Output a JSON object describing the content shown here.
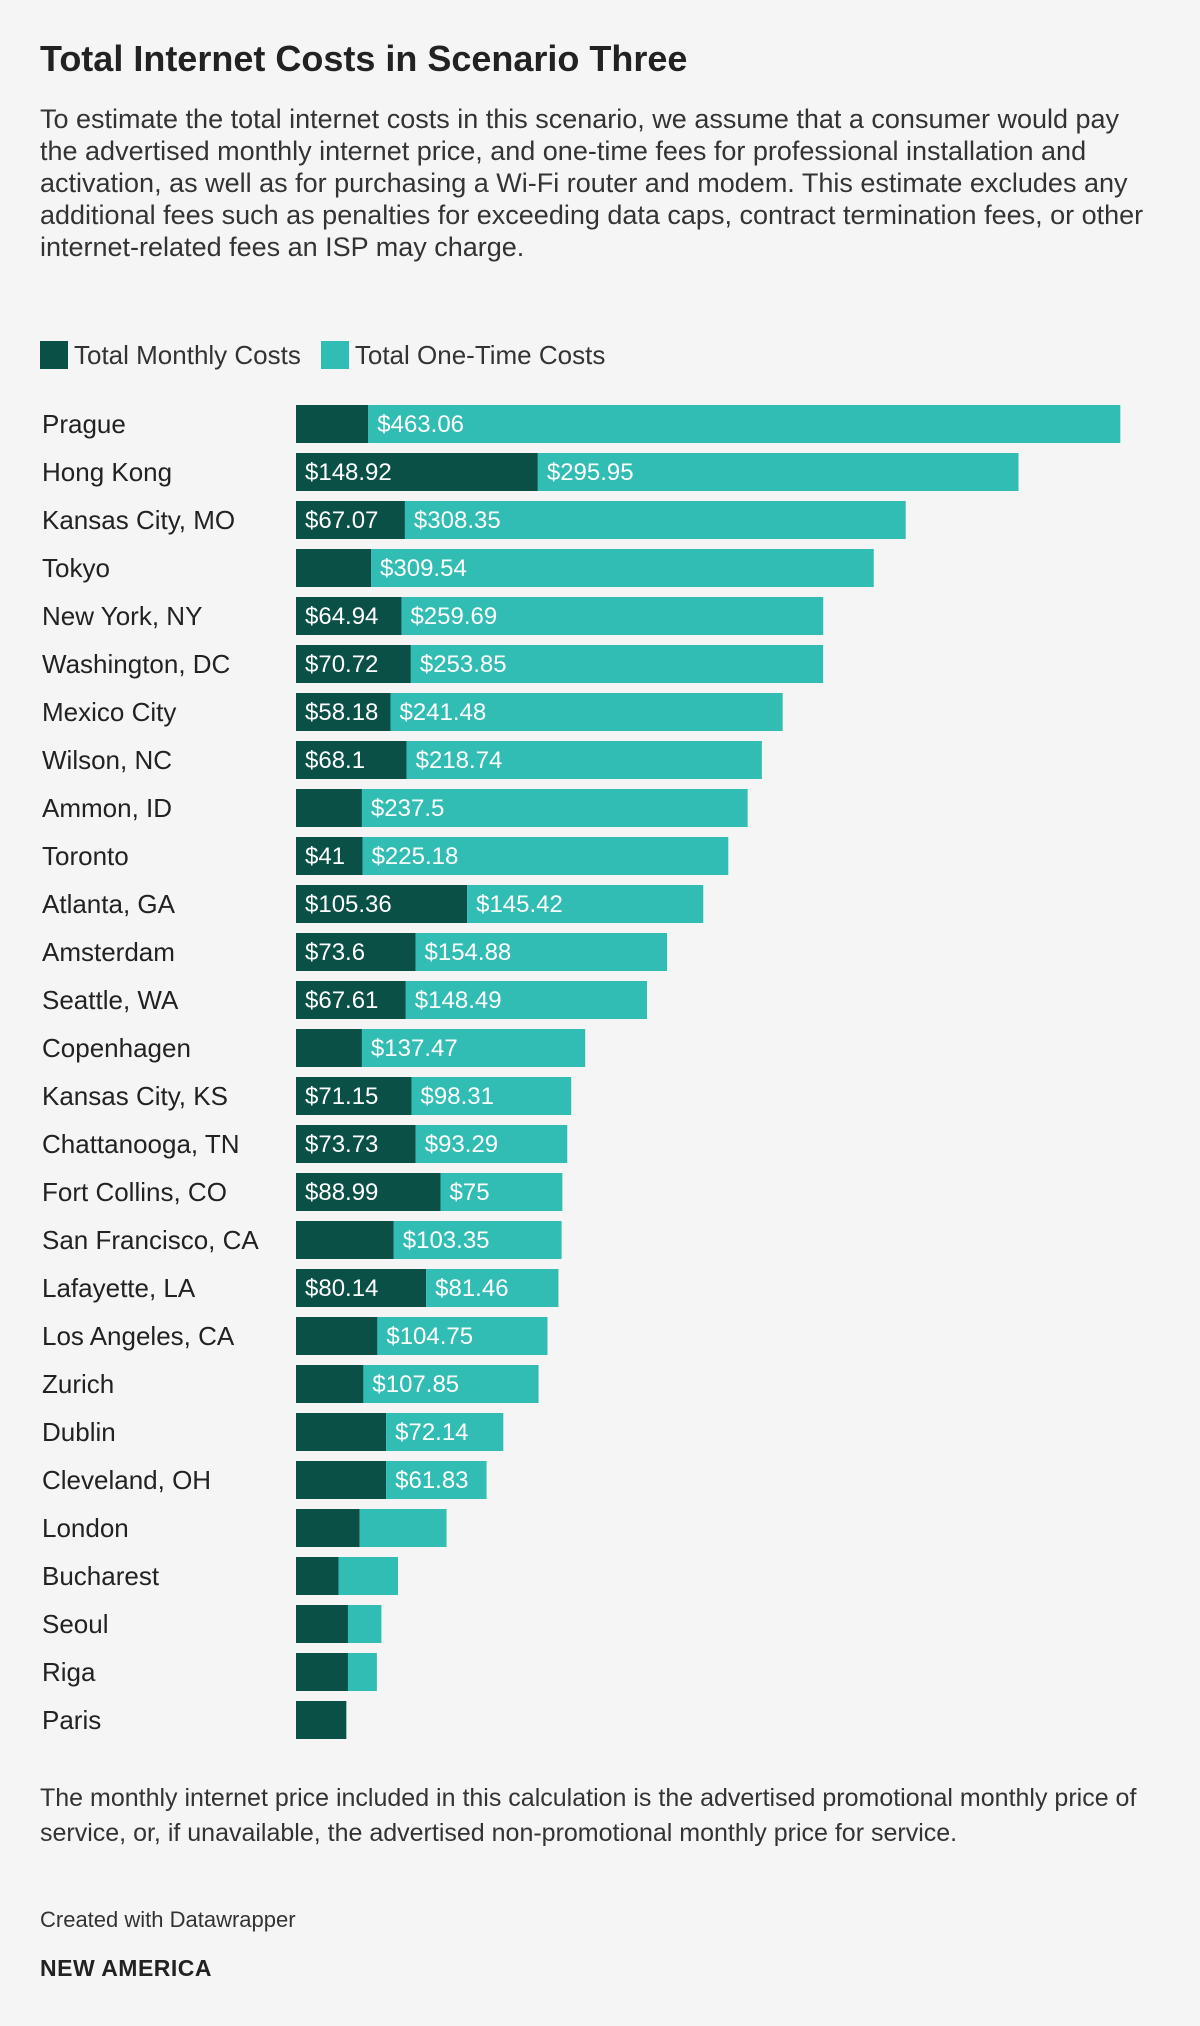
{
  "title": "Total Internet Costs in Scenario Three",
  "subtitle": "To estimate the total internet costs in this scenario, we assume that a consumer would pay the advertised monthly internet price, and one-time fees for professional installation and activation, as well as for purchasing a Wi-Fi router and modem. This estimate excludes any additional fees such as penalties for exceeding data caps, contract termination fees, or other internet-related fees an ISP may charge.",
  "legend": {
    "monthly_label": "Total Monthly Costs",
    "onetime_label": "Total One-Time Costs"
  },
  "colors": {
    "monthly": "#0b5047",
    "onetime": "#31bdb3",
    "background": "#f5f5f5",
    "label_text": "#ffffff"
  },
  "chart_data": {
    "type": "bar",
    "orientation": "horizontal",
    "stacked": true,
    "title": "Total Internet Costs in Scenario Three",
    "xlim": [
      0,
      532
    ],
    "categories": [
      "Prague",
      "Hong Kong",
      "Kansas City, MO",
      "Tokyo",
      "New York, NY",
      "Washington, DC",
      "Mexico City",
      "Wilson, NC",
      "Ammon, ID",
      "Toronto",
      "Atlanta, GA",
      "Amsterdam",
      "Seattle, WA",
      "Copenhagen",
      "Kansas City, KS",
      "Chattanooga, TN",
      "Fort Collins, CO",
      "San Francisco, CA",
      "Lafayette, LA",
      "Los Angeles, CA",
      "Zurich",
      "Dublin",
      "Cleveland, OH",
      "London",
      "Bucharest",
      "Seoul",
      "Riga",
      "Paris"
    ],
    "series": [
      {
        "name": "Total Monthly Costs",
        "values": [
          44.5,
          148.92,
          67.07,
          46.2,
          64.94,
          70.72,
          58.18,
          68.1,
          40.6,
          41,
          105.36,
          73.6,
          67.61,
          40.6,
          71.15,
          73.73,
          88.99,
          60.2,
          80.14,
          50.1,
          41.5,
          55.5,
          55.5,
          39.2,
          26.2,
          32.0,
          32.0,
          31.0
        ],
        "labels": [
          "",
          "$148.92",
          "$67.07",
          "",
          "$64.94",
          "$70.72",
          "$58.18",
          "$68.1",
          "",
          "$41",
          "$105.36",
          "$73.6",
          "$67.61",
          "",
          "$71.15",
          "$73.73",
          "$88.99",
          "",
          "$80.14",
          "",
          "",
          "",
          "",
          "",
          "",
          "",
          "",
          ""
        ]
      },
      {
        "name": "Total One-Time Costs",
        "values": [
          463.06,
          295.95,
          308.35,
          309.54,
          259.69,
          253.85,
          241.48,
          218.74,
          237.5,
          225.18,
          145.42,
          154.88,
          148.49,
          137.47,
          98.31,
          93.29,
          75,
          103.35,
          81.46,
          104.75,
          107.85,
          72.14,
          61.83,
          53.5,
          36.6,
          20.6,
          17.8,
          0
        ],
        "labels": [
          "$463.06",
          "$295.95",
          "$308.35",
          "$309.54",
          "$259.69",
          "$253.85",
          "$241.48",
          "$218.74",
          "$237.5",
          "$225.18",
          "$145.42",
          "$154.88",
          "$148.49",
          "$137.47",
          "$98.31",
          "$93.29",
          "$75",
          "$103.35",
          "$81.46",
          "$104.75",
          "$107.85",
          "$72.14",
          "$61.83",
          "",
          "",
          "",
          "",
          ""
        ]
      }
    ],
    "legend_position": "top-left",
    "grid": false
  },
  "notes": "The monthly internet price included in this calculation is the advertised promotional monthly price of service, or, if unavailable, the advertised non-promotional monthly price for service.",
  "credit": "Created with Datawrapper",
  "brand": "NEW AMERICA"
}
